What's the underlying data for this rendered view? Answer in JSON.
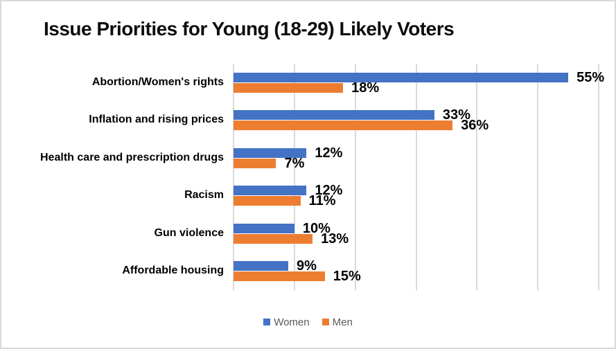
{
  "title": "Issue Priorities for Young (18-29) Likely Voters",
  "chart_data": {
    "type": "bar",
    "orientation": "horizontal",
    "title": "Issue Priorities for Young (18-29) Likely Voters",
    "categories": [
      "Abortion/Women's rights",
      "Inflation and rising prices",
      "Health care and prescription drugs",
      "Racism",
      "Gun violence",
      "Affordable housing"
    ],
    "series": [
      {
        "name": "Women",
        "color": "#4472C4",
        "values": [
          55,
          33,
          12,
          12,
          10,
          9
        ]
      },
      {
        "name": "Men",
        "color": "#ED7D31",
        "values": [
          18,
          36,
          7,
          11,
          13,
          15
        ]
      }
    ],
    "value_suffix": "%",
    "data_labels": [
      "55%",
      "33%",
      "12%",
      "12%",
      "10%",
      "9%",
      "18%",
      "36%",
      "7%",
      "11%",
      "13%",
      "15%"
    ],
    "xlim": [
      0,
      60
    ],
    "gridline_step": 10,
    "grid": true,
    "gridline_color": "#d9d9d9",
    "legend_position": "bottom",
    "legend_text_color": "#595959",
    "xlabel": "",
    "ylabel": ""
  }
}
